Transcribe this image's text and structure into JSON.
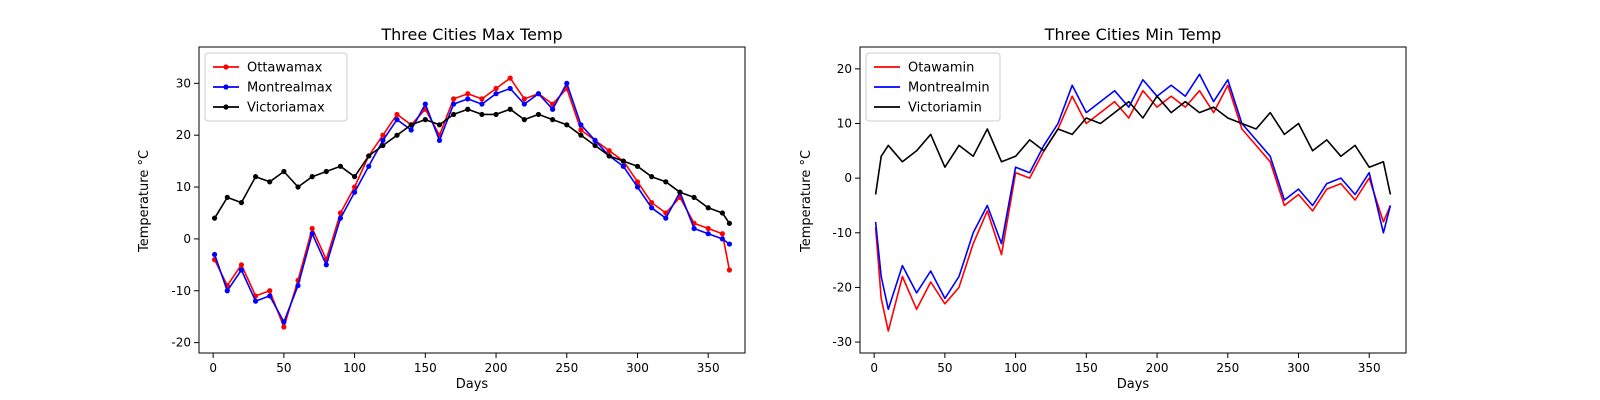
{
  "chart_data": [
    {
      "type": "line",
      "title": "Three Cities Max Temp",
      "xlabel": "Days",
      "ylabel": "Temperature °C",
      "xlim": [
        -10,
        376
      ],
      "ylim": [
        -22,
        37
      ],
      "xticks": [
        0,
        50,
        100,
        150,
        200,
        250,
        300,
        350
      ],
      "yticks": [
        -20,
        -10,
        0,
        10,
        20,
        30
      ],
      "markers": true,
      "legend": "top-left",
      "series": [
        {
          "name": "Ottawamax",
          "color": "#ff0000",
          "x": [
            1,
            10,
            20,
            30,
            40,
            50,
            60,
            70,
            80,
            90,
            100,
            110,
            120,
            130,
            140,
            150,
            160,
            170,
            180,
            190,
            200,
            210,
            220,
            230,
            240,
            250,
            260,
            270,
            280,
            290,
            300,
            310,
            320,
            330,
            340,
            350,
            360,
            365
          ],
          "y": [
            -4,
            -9,
            -5,
            -11,
            -10,
            -17,
            -8,
            2,
            -4,
            5,
            10,
            16,
            20,
            24,
            22,
            25,
            20,
            27,
            28,
            27,
            29,
            31,
            27,
            28,
            26,
            29,
            21,
            19,
            17,
            15,
            11,
            7,
            5,
            8,
            3,
            2,
            1,
            -6
          ]
        },
        {
          "name": "Montrealmax",
          "color": "#0000ff",
          "x": [
            1,
            10,
            20,
            30,
            40,
            50,
            60,
            70,
            80,
            90,
            100,
            110,
            120,
            130,
            140,
            150,
            160,
            170,
            180,
            190,
            200,
            210,
            220,
            230,
            240,
            250,
            260,
            270,
            280,
            290,
            300,
            310,
            320,
            330,
            340,
            350,
            360,
            365
          ],
          "y": [
            -3,
            -10,
            -6,
            -12,
            -11,
            -16,
            -9,
            1,
            -5,
            4,
            9,
            14,
            19,
            23,
            21,
            26,
            19,
            26,
            27,
            26,
            28,
            29,
            26,
            28,
            25,
            30,
            22,
            19,
            16,
            14,
            10,
            6,
            4,
            9,
            2,
            1,
            0,
            -1
          ]
        },
        {
          "name": "Victoriamax",
          "color": "#000000",
          "x": [
            1,
            10,
            20,
            30,
            40,
            50,
            60,
            70,
            80,
            90,
            100,
            110,
            120,
            130,
            140,
            150,
            160,
            170,
            180,
            190,
            200,
            210,
            220,
            230,
            240,
            250,
            260,
            270,
            280,
            290,
            300,
            310,
            320,
            330,
            340,
            350,
            360,
            365
          ],
          "y": [
            4,
            8,
            7,
            12,
            11,
            13,
            10,
            12,
            13,
            14,
            12,
            16,
            18,
            20,
            22,
            23,
            22,
            24,
            25,
            24,
            24,
            25,
            23,
            24,
            23,
            22,
            20,
            18,
            16,
            15,
            14,
            12,
            11,
            9,
            8,
            6,
            5,
            3
          ]
        }
      ]
    },
    {
      "type": "line",
      "title": "Three Cities Min Temp",
      "xlabel": "Days",
      "ylabel": "Temperature °C",
      "xlim": [
        -10,
        376
      ],
      "ylim": [
        -32,
        24
      ],
      "xticks": [
        0,
        50,
        100,
        150,
        200,
        250,
        300,
        350
      ],
      "yticks": [
        -30,
        -20,
        -10,
        0,
        10,
        20
      ],
      "markers": false,
      "legend": "top-left",
      "series": [
        {
          "name": "Otawamin",
          "color": "#ff0000",
          "x": [
            1,
            5,
            10,
            20,
            30,
            40,
            50,
            60,
            70,
            80,
            90,
            100,
            110,
            120,
            130,
            140,
            150,
            160,
            170,
            180,
            190,
            200,
            210,
            220,
            230,
            240,
            250,
            260,
            270,
            280,
            290,
            300,
            310,
            320,
            330,
            340,
            350,
            360,
            365
          ],
          "y": [
            -9,
            -22,
            -28,
            -18,
            -24,
            -19,
            -23,
            -20,
            -12,
            -6,
            -14,
            1,
            0,
            5,
            9,
            15,
            10,
            12,
            14,
            11,
            16,
            13,
            15,
            13,
            16,
            12,
            17,
            9,
            6,
            3,
            -5,
            -3,
            -6,
            -2,
            -1,
            -4,
            0,
            -8,
            -5
          ]
        },
        {
          "name": "Montrealmin",
          "color": "#0000ff",
          "x": [
            1,
            5,
            10,
            20,
            30,
            40,
            50,
            60,
            70,
            80,
            90,
            100,
            110,
            120,
            130,
            140,
            150,
            160,
            170,
            180,
            190,
            200,
            210,
            220,
            230,
            240,
            250,
            260,
            270,
            280,
            290,
            300,
            310,
            320,
            330,
            340,
            350,
            360,
            365
          ],
          "y": [
            -8,
            -18,
            -24,
            -16,
            -21,
            -17,
            -22,
            -18,
            -10,
            -5,
            -12,
            2,
            1,
            6,
            10,
            17,
            12,
            14,
            16,
            13,
            18,
            15,
            17,
            15,
            19,
            14,
            18,
            10,
            7,
            4,
            -4,
            -2,
            -5,
            -1,
            0,
            -3,
            1,
            -10,
            -5
          ]
        },
        {
          "name": "Victoriamin",
          "color": "#000000",
          "x": [
            1,
            5,
            10,
            20,
            30,
            40,
            50,
            60,
            70,
            80,
            90,
            100,
            110,
            120,
            130,
            140,
            150,
            160,
            170,
            180,
            190,
            200,
            210,
            220,
            230,
            240,
            250,
            260,
            270,
            280,
            290,
            300,
            310,
            320,
            330,
            340,
            350,
            360,
            365
          ],
          "y": [
            -3,
            4,
            6,
            3,
            5,
            8,
            2,
            6,
            4,
            9,
            3,
            4,
            7,
            5,
            9,
            8,
            11,
            10,
            12,
            14,
            11,
            15,
            12,
            14,
            12,
            13,
            11,
            10,
            9,
            12,
            8,
            10,
            5,
            7,
            4,
            6,
            2,
            3,
            -3
          ]
        }
      ]
    }
  ]
}
